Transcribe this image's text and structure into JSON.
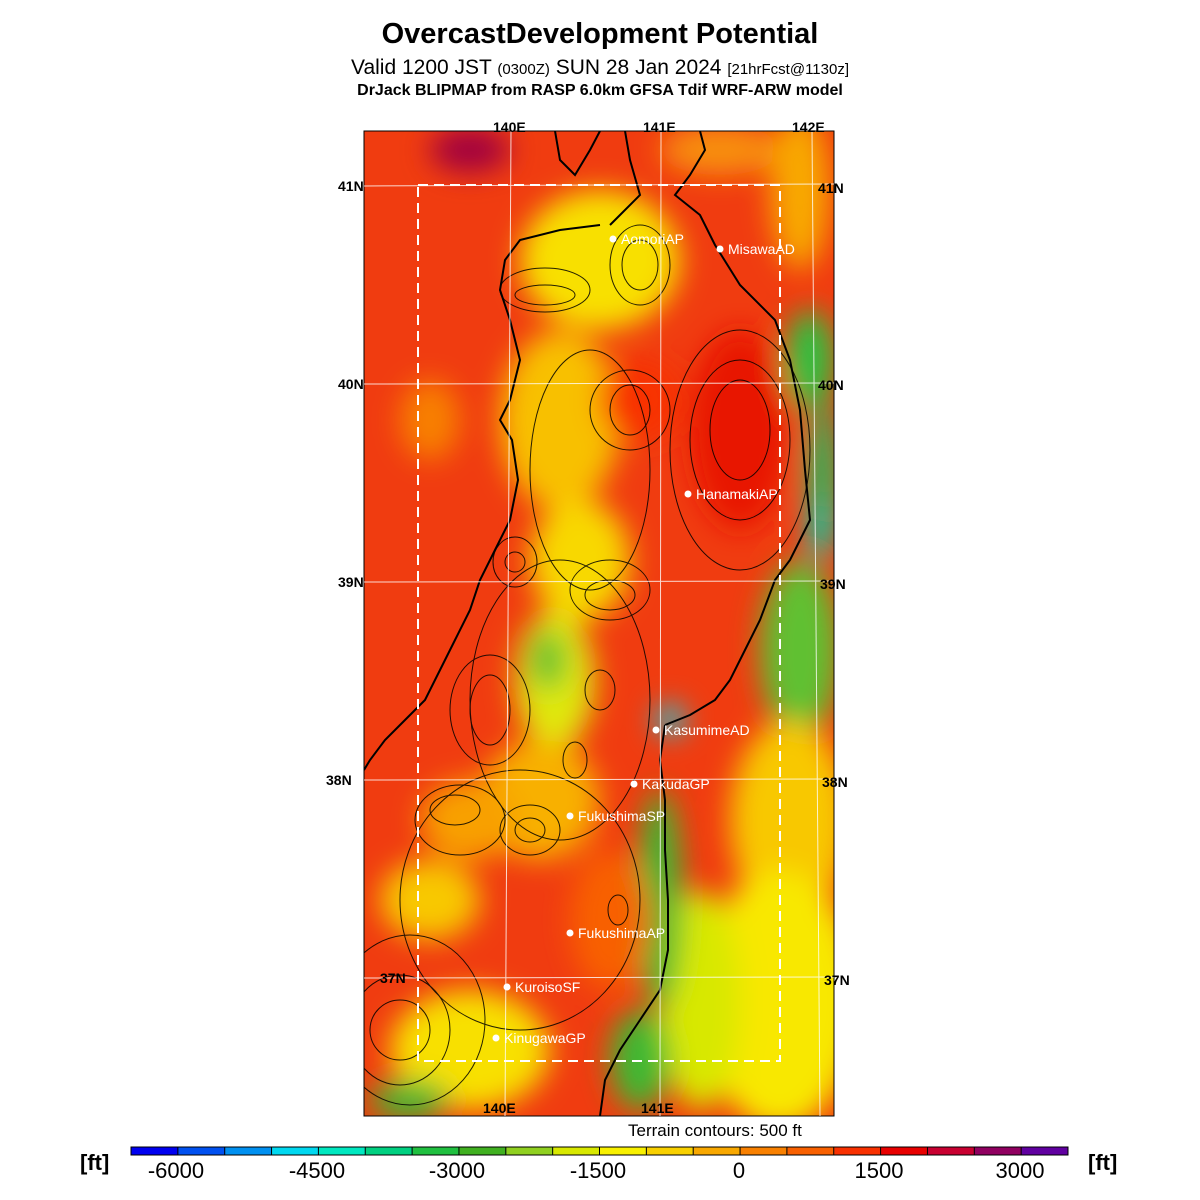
{
  "title": "OvercastDevelopment Potential",
  "subtitle": {
    "valid": "Valid 1200 JST",
    "utc": "(0300Z)",
    "date": "SUN 28 Jan 2024",
    "fcst": "[21hrFcst@1130z]"
  },
  "model_line": "DrJack BLIPMAP from RASP 6.0km GFSA Tdif WRF-ARW model",
  "map": {
    "lon_labels": [
      "140E",
      "141E",
      "142E"
    ],
    "lat_labels": [
      "41N",
      "40N",
      "39N",
      "38N",
      "37N"
    ],
    "stations": [
      {
        "name": "AomoriAP"
      },
      {
        "name": "MisawaAD"
      },
      {
        "name": "HanamakiAP"
      },
      {
        "name": "KasumimeAD"
      },
      {
        "name": "KakudaGP"
      },
      {
        "name": "FukushimaSP"
      },
      {
        "name": "FukushimaAP"
      },
      {
        "name": "KuroisoSF"
      },
      {
        "name": "KinugawaGP"
      }
    ],
    "terrain_note": "Terrain contours: 500 ft"
  },
  "colorbar": {
    "unit_left": "[ft]",
    "unit_right": "[ft]",
    "tick_labels": [
      "-6000",
      "-4500",
      "-3000",
      "-1500",
      "0",
      "1500",
      "3000"
    ],
    "colors": [
      "#0000f0",
      "#0050f0",
      "#0090f0",
      "#00d8f0",
      "#00e8c0",
      "#00d080",
      "#20c040",
      "#40b020",
      "#90d020",
      "#d8e800",
      "#f8f000",
      "#f8d000",
      "#f8a800",
      "#f88000",
      "#f86000",
      "#f83000",
      "#e80000",
      "#c80030",
      "#900060",
      "#6000a0"
    ]
  }
}
